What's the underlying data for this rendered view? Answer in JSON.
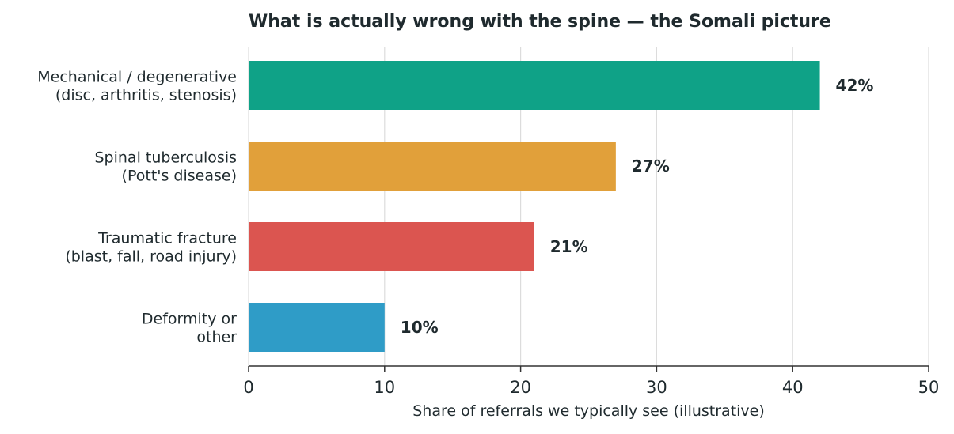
{
  "chart_data": {
    "type": "bar",
    "orientation": "horizontal",
    "title": "What is actually wrong with the spine — the Somali picture",
    "xlabel": "Share of referrals we typically see (illustrative)",
    "ylabel": "",
    "xlim": [
      0,
      50
    ],
    "x_ticks": [
      0,
      10,
      20,
      30,
      40,
      50
    ],
    "grid": "vertical",
    "value_suffix": "%",
    "categories": [
      [
        "Mechanical / degenerative",
        "(disc, arthritis, stenosis)"
      ],
      [
        "Spinal tuberculosis",
        "(Pott's disease)"
      ],
      [
        "Traumatic fracture",
        "(blast, fall, road injury)"
      ],
      [
        "Deformity or",
        "other"
      ]
    ],
    "values": [
      42,
      27,
      21,
      10
    ],
    "value_labels": [
      "42%",
      "27%",
      "21%",
      "10%"
    ],
    "colors": [
      "#0fa287",
      "#e1a03a",
      "#db5550",
      "#2f9cc7"
    ]
  }
}
